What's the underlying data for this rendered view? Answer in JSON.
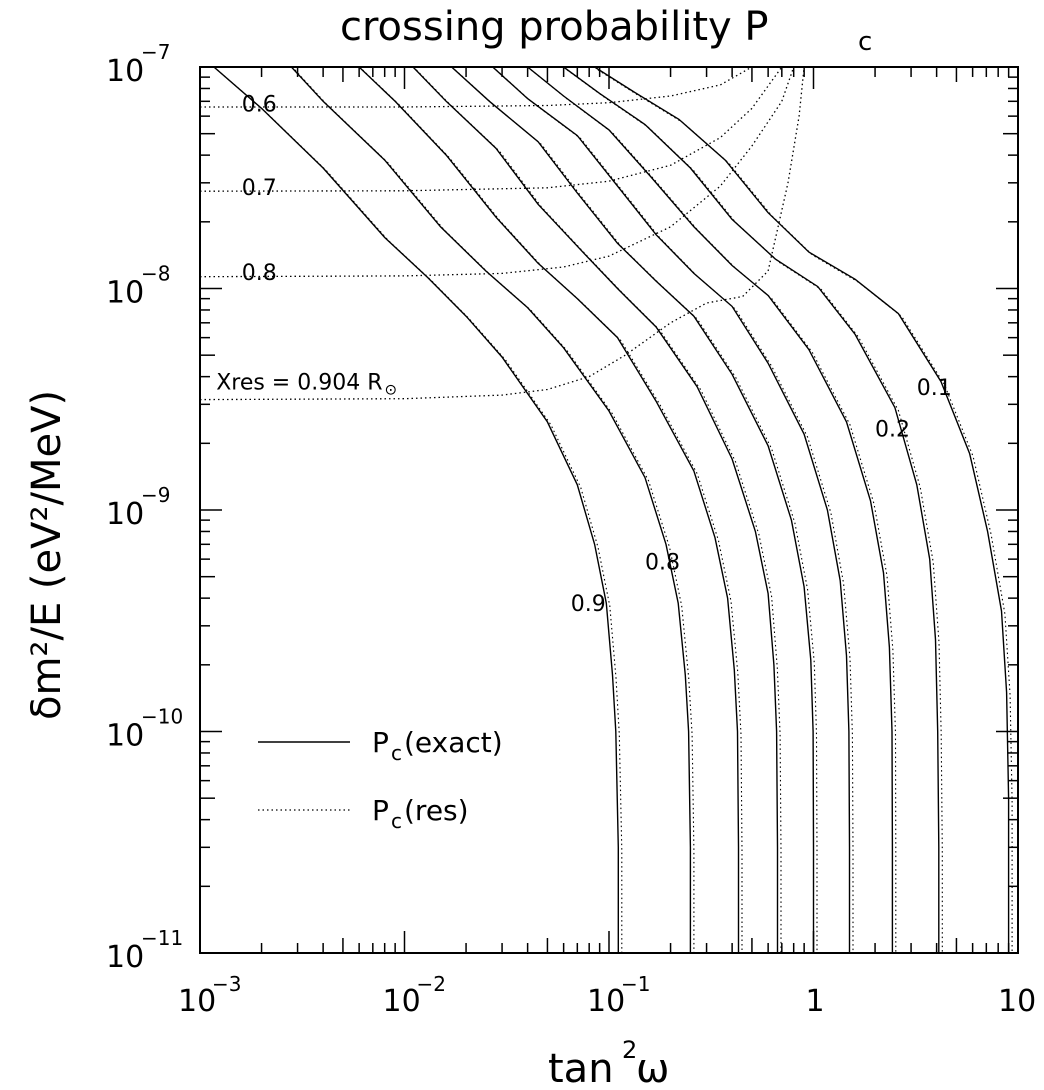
{
  "chart_data": {
    "type": "line",
    "title": "crossing probability P",
    "title_sub": "c",
    "xlabel": "tan",
    "xlabel_sup": "2",
    "xlabel_tail": "ω",
    "ylabel": "δm²/E  (eV²/MeV)",
    "x_scale": "log",
    "y_scale": "log",
    "xlim": [
      0.001,
      10
    ],
    "ylim": [
      1e-11,
      1e-07
    ],
    "x_ticks": [
      {
        "value": 0.001,
        "base": "10",
        "exp": "−3"
      },
      {
        "value": 0.01,
        "base": "10",
        "exp": "−2"
      },
      {
        "value": 0.1,
        "base": "10",
        "exp": "−1"
      },
      {
        "value": 1,
        "base": "1",
        "exp": ""
      },
      {
        "value": 10,
        "base": "10",
        "exp": ""
      }
    ],
    "y_ticks": [
      {
        "value": 1e-07,
        "base": "10",
        "exp": "−7"
      },
      {
        "value": 1e-08,
        "base": "10",
        "exp": "−8"
      },
      {
        "value": 1e-09,
        "base": "10",
        "exp": "−9"
      },
      {
        "value": 1e-10,
        "base": "10",
        "exp": "−10"
      },
      {
        "value": 1e-11,
        "base": "10",
        "exp": "−11"
      }
    ],
    "grid": false,
    "legend_position": "bottom-left",
    "legend": [
      {
        "label": "P",
        "sub": "c",
        "tail": " (exact)",
        "style": "solid"
      },
      {
        "label": "P",
        "sub": "c",
        "tail": " (res)",
        "style": "dotted"
      }
    ],
    "series_pc": [
      {
        "name": "0.9",
        "values": [
          [
            0.00117,
            1e-07
          ],
          [
            0.002,
            6.5e-08
          ],
          [
            0.004,
            3.5e-08
          ],
          [
            0.008,
            1.7e-08
          ],
          [
            0.013,
            1.12e-08
          ],
          [
            0.02,
            7.5e-09
          ],
          [
            0.03,
            4.9e-09
          ],
          [
            0.05,
            2.5e-09
          ],
          [
            0.07,
            1.3e-09
          ],
          [
            0.085,
            7e-10
          ],
          [
            0.097,
            3.8e-10
          ],
          [
            0.104,
            1.8e-10
          ],
          [
            0.108,
            1e-10
          ],
          [
            0.111,
            3e-11
          ],
          [
            0.111,
            1e-11
          ]
        ]
      },
      {
        "name": "0.8",
        "values": [
          [
            0.0028,
            1e-07
          ],
          [
            0.004,
            7e-08
          ],
          [
            0.008,
            3.8e-08
          ],
          [
            0.015,
            1.9e-08
          ],
          [
            0.025,
            1.2e-08
          ],
          [
            0.04,
            8.2e-09
          ],
          [
            0.06,
            5.4e-09
          ],
          [
            0.1,
            2.8e-09
          ],
          [
            0.15,
            1.4e-09
          ],
          [
            0.19,
            7e-10
          ],
          [
            0.218,
            3.8e-10
          ],
          [
            0.236,
            1.8e-10
          ],
          [
            0.245,
            1e-10
          ],
          [
            0.25,
            3e-11
          ],
          [
            0.25,
            1e-11
          ]
        ]
      },
      {
        "name": "",
        "values": [
          [
            0.006,
            1e-07
          ],
          [
            0.009,
            7e-08
          ],
          [
            0.016,
            4e-08
          ],
          [
            0.028,
            2.1e-08
          ],
          [
            0.045,
            1.3e-08
          ],
          [
            0.07,
            9e-09
          ],
          [
            0.11,
            6e-09
          ],
          [
            0.17,
            3.1e-09
          ],
          [
            0.26,
            1.5e-09
          ],
          [
            0.33,
            7.5e-10
          ],
          [
            0.38,
            4e-10
          ],
          [
            0.41,
            1.9e-10
          ],
          [
            0.425,
            1e-10
          ],
          [
            0.43,
            3e-11
          ],
          [
            0.43,
            1e-11
          ]
        ]
      },
      {
        "name": "",
        "values": [
          [
            0.011,
            1e-07
          ],
          [
            0.016,
            7e-08
          ],
          [
            0.028,
            4.3e-08
          ],
          [
            0.045,
            2.4e-08
          ],
          [
            0.075,
            1.45e-08
          ],
          [
            0.11,
            1e-08
          ],
          [
            0.17,
            6.7e-09
          ],
          [
            0.27,
            3.6e-09
          ],
          [
            0.4,
            1.7e-09
          ],
          [
            0.52,
            8e-10
          ],
          [
            0.6,
            4.2e-10
          ],
          [
            0.64,
            2e-10
          ],
          [
            0.66,
            1e-10
          ],
          [
            0.667,
            3e-11
          ],
          [
            0.667,
            1e-11
          ]
        ]
      },
      {
        "name": "",
        "values": [
          [
            0.017,
            1e-07
          ],
          [
            0.026,
            7e-08
          ],
          [
            0.045,
            4.6e-08
          ],
          [
            0.07,
            2.7e-08
          ],
          [
            0.11,
            1.6e-08
          ],
          [
            0.17,
            1.08e-08
          ],
          [
            0.26,
            7.5e-09
          ],
          [
            0.4,
            4.1e-09
          ],
          [
            0.6,
            1.95e-09
          ],
          [
            0.78,
            9e-10
          ],
          [
            0.9,
            4.5e-10
          ],
          [
            0.97,
            2.1e-10
          ],
          [
            0.995,
            1e-10
          ],
          [
            1,
            3e-11
          ],
          [
            1,
            1e-11
          ]
        ]
      },
      {
        "name": "",
        "values": [
          [
            0.027,
            1e-07
          ],
          [
            0.04,
            7.2e-08
          ],
          [
            0.07,
            4.9e-08
          ],
          [
            0.11,
            2.9e-08
          ],
          [
            0.17,
            1.75e-08
          ],
          [
            0.26,
            1.17e-08
          ],
          [
            0.4,
            8.3e-09
          ],
          [
            0.6,
            4.6e-09
          ],
          [
            0.9,
            2.2e-09
          ],
          [
            1.17,
            1e-09
          ],
          [
            1.35,
            4.8e-10
          ],
          [
            1.45,
            2.2e-10
          ],
          [
            1.49,
            1e-10
          ],
          [
            1.5,
            3e-11
          ],
          [
            1.5,
            1e-11
          ]
        ]
      },
      {
        "name": "",
        "values": [
          [
            0.04,
            1e-07
          ],
          [
            0.06,
            7.4e-08
          ],
          [
            0.1,
            5.2e-08
          ],
          [
            0.16,
            3.2e-08
          ],
          [
            0.26,
            1.9e-08
          ],
          [
            0.4,
            1.27e-08
          ],
          [
            0.6,
            9.3e-09
          ],
          [
            0.95,
            5.3e-09
          ],
          [
            1.45,
            2.5e-09
          ],
          [
            1.9,
            1.1e-09
          ],
          [
            2.2,
            5.2e-10
          ],
          [
            2.35,
            2.4e-10
          ],
          [
            2.42,
            1e-10
          ],
          [
            2.43,
            3e-11
          ],
          [
            2.43,
            1e-11
          ]
        ]
      },
      {
        "name": "0.2",
        "values": [
          [
            0.06,
            1e-07
          ],
          [
            0.09,
            7.6e-08
          ],
          [
            0.15,
            5.5e-08
          ],
          [
            0.25,
            3.5e-08
          ],
          [
            0.4,
            2.05e-08
          ],
          [
            0.65,
            1.36e-08
          ],
          [
            1.05,
            1.02e-08
          ],
          [
            1.6,
            6.2e-09
          ],
          [
            2.5,
            2.9e-09
          ],
          [
            3.2,
            1.3e-09
          ],
          [
            3.7,
            6e-10
          ],
          [
            3.95,
            2.6e-10
          ],
          [
            4.05,
            1e-10
          ],
          [
            4.1,
            3e-11
          ],
          [
            4.1,
            1e-11
          ]
        ]
      },
      {
        "name": "0.1",
        "values": [
          [
            0.085,
            1e-07
          ],
          [
            0.13,
            7.8e-08
          ],
          [
            0.22,
            5.8e-08
          ],
          [
            0.37,
            3.8e-08
          ],
          [
            0.6,
            2.2e-08
          ],
          [
            0.95,
            1.46e-08
          ],
          [
            1.6,
            1.1e-08
          ],
          [
            2.6,
            7.7e-09
          ],
          [
            4.2,
            3.8e-09
          ],
          [
            5.8,
            1.8e-09
          ],
          [
            7.1,
            8e-10
          ],
          [
            8.3,
            3.5e-10
          ],
          [
            8.8,
            1.5e-10
          ],
          [
            9,
            5e-11
          ],
          [
            9,
            1e-11
          ]
        ]
      }
    ],
    "series_xres": [
      {
        "name": "0.6",
        "values": [
          [
            0.001,
            6.6e-08
          ],
          [
            0.01,
            6.6e-08
          ],
          [
            0.05,
            6.7e-08
          ],
          [
            0.1,
            6.9e-08
          ],
          [
            0.2,
            7.4e-08
          ],
          [
            0.35,
            8.3e-08
          ],
          [
            0.5,
            1e-07
          ]
        ]
      },
      {
        "name": "0.7",
        "values": [
          [
            0.001,
            2.75e-08
          ],
          [
            0.01,
            2.76e-08
          ],
          [
            0.05,
            2.85e-08
          ],
          [
            0.1,
            3.05e-08
          ],
          [
            0.2,
            3.6e-08
          ],
          [
            0.35,
            4.8e-08
          ],
          [
            0.5,
            6.5e-08
          ],
          [
            0.7,
            1e-07
          ]
        ]
      },
      {
        "name": "0.8",
        "values": [
          [
            0.001,
            1.13e-08
          ],
          [
            0.01,
            1.14e-08
          ],
          [
            0.03,
            1.17e-08
          ],
          [
            0.06,
            1.25e-08
          ],
          [
            0.1,
            1.4e-08
          ],
          [
            0.2,
            1.9e-08
          ],
          [
            0.35,
            2.9e-08
          ],
          [
            0.5,
            4.4e-08
          ],
          [
            0.7,
            7e-08
          ],
          [
            0.8,
            1e-07
          ]
        ]
      },
      {
        "name": "Xres = 0.904 R",
        "values": [
          [
            0.001,
            3.15e-09
          ],
          [
            0.01,
            3.18e-09
          ],
          [
            0.03,
            3.3e-09
          ],
          [
            0.05,
            3.5e-09
          ],
          [
            0.08,
            4e-09
          ],
          [
            0.12,
            5e-09
          ],
          [
            0.2,
            7e-09
          ],
          [
            0.3,
            8.6e-09
          ],
          [
            0.45,
            9.2e-09
          ],
          [
            0.6,
            1.2e-08
          ],
          [
            0.75,
            3e-08
          ],
          [
            0.85,
            6e-08
          ],
          [
            0.9,
            1e-07
          ]
        ]
      }
    ],
    "annotations": [
      {
        "text": "0.6",
        "x": 0.0016,
        "y": 6.3e-08
      },
      {
        "text": "0.7",
        "x": 0.0016,
        "y": 2.65e-08
      },
      {
        "text": "0.8",
        "x": 0.0016,
        "y": 1.09e-08
      },
      {
        "text": "Xres = 0.904 R",
        "sub": "⊙",
        "x": 0.0012,
        "y": 3.5e-09
      },
      {
        "text": "0.9",
        "x": 0.065,
        "y": 3.5e-10
      },
      {
        "text": "0.8",
        "x": 0.15,
        "y": 5.4e-10
      },
      {
        "text": "0.2",
        "x": 2.0,
        "y": 2.15e-09
      },
      {
        "text": "0.1",
        "x": 3.2,
        "y": 3.3e-09
      }
    ]
  }
}
